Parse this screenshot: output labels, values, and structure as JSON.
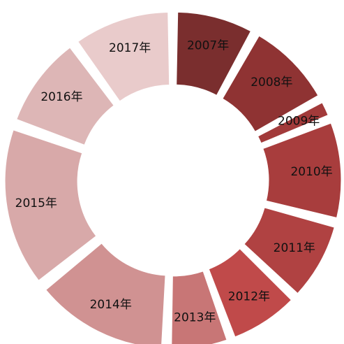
{
  "chart_data": {
    "type": "donut",
    "categories": [
      "2007年",
      "2008年",
      "2009年",
      "2010年",
      "2011年",
      "2012年",
      "2013年",
      "2014年",
      "2015年",
      "2016年",
      "2017年"
    ],
    "values": [
      29,
      32,
      7,
      36,
      29,
      26,
      22,
      49,
      58,
      34,
      36
    ],
    "colors": [
      "#7a2e2e",
      "#8f3333",
      "#a23a3a",
      "#a83d3d",
      "#b04242",
      "#c04a4a",
      "#c87676",
      "#d09292",
      "#d8a9a9",
      "#ddb6b6",
      "#e9cbcb"
    ]
  }
}
